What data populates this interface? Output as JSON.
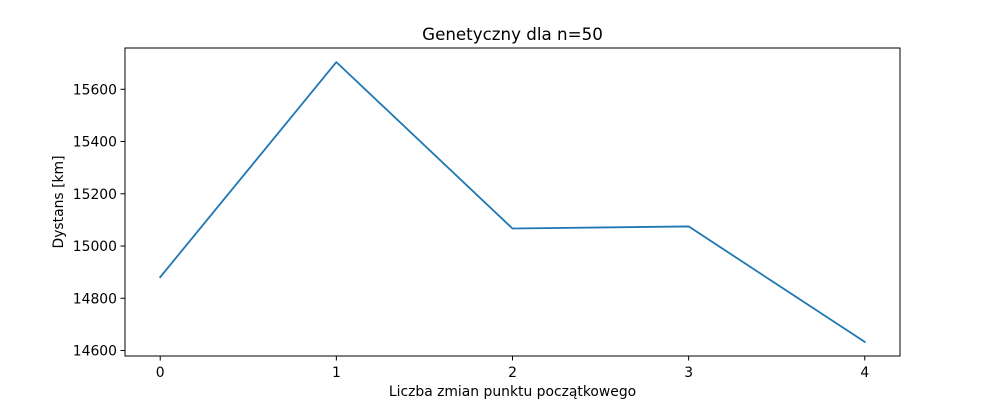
{
  "chart_data": {
    "type": "line",
    "title": "Genetyczny dla n=50",
    "xlabel": "Liczba zmian punktu początkowego",
    "ylabel": "Dystans [km]",
    "x": [
      0,
      1,
      2,
      3,
      4
    ],
    "series": [
      {
        "values": [
          14881,
          15704,
          15067,
          15075,
          14633
        ],
        "color": "#1f77b4"
      }
    ],
    "xticks": [
      "0",
      "1",
      "2",
      "3",
      "4"
    ],
    "yticks": [
      14600,
      14800,
      15000,
      15200,
      15400,
      15600
    ],
    "xlim": [
      -0.2,
      4.2
    ],
    "ylim": [
      14579,
      15758
    ],
    "grid": false,
    "legend": "none"
  }
}
